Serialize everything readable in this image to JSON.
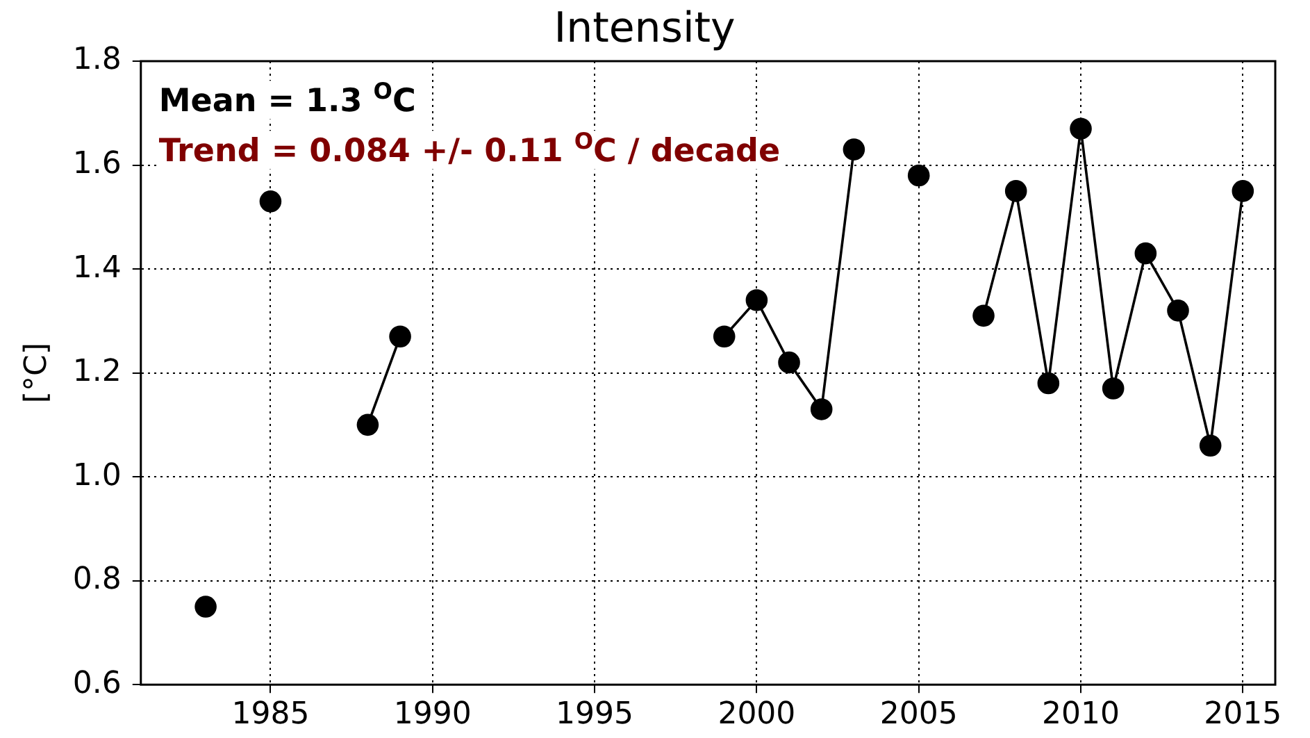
{
  "chart_data": {
    "type": "line",
    "title": "Intensity",
    "ylabel": "[°C]",
    "x": [
      1983,
      1984,
      1985,
      1986,
      1987,
      1988,
      1989,
      1990,
      1991,
      1992,
      1993,
      1994,
      1995,
      1996,
      1997,
      1998,
      1999,
      2000,
      2001,
      2002,
      2003,
      2004,
      2005,
      2006,
      2007,
      2008,
      2009,
      2010,
      2011,
      2012,
      2013,
      2014,
      2015
    ],
    "series": [
      {
        "color": "#000000",
        "values": [
          0.75,
          null,
          1.53,
          null,
          null,
          1.1,
          1.27,
          null,
          null,
          null,
          null,
          null,
          null,
          null,
          null,
          null,
          1.27,
          1.34,
          1.22,
          1.13,
          1.63,
          null,
          1.58,
          null,
          1.31,
          1.55,
          1.18,
          1.67,
          1.17,
          1.43,
          1.32,
          1.06,
          1.55
        ]
      }
    ],
    "xlim": [
      1981,
      2016
    ],
    "xticks": [
      1985,
      1990,
      1995,
      2000,
      2005,
      2010,
      2015
    ],
    "ylim": [
      0.6,
      1.8
    ],
    "yticks": [
      0.6,
      0.8,
      {
        "value": 1.0,
        "label": "1.0"
      },
      1.2,
      1.4,
      1.6,
      1.8
    ],
    "annotations": [
      "Mean = 1.3 $^{O}$C",
      "Trend = 0.084 +/- 0.11 $^{O}$C / decade"
    ],
    "grid": true,
    "legend": false,
    "marker": "circle",
    "line_style": "solid"
  }
}
